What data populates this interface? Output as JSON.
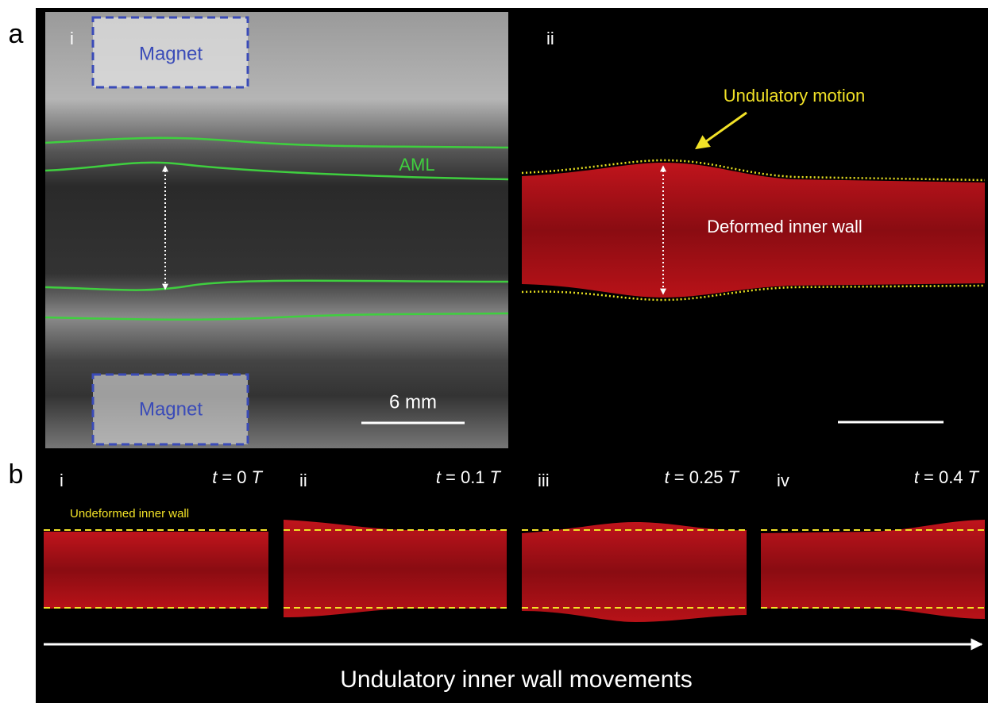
{
  "panel_a": {
    "label": "a",
    "sub_i": {
      "label": "i",
      "magnet_top": "Magnet",
      "magnet_bottom": "Magnet",
      "layer": "AML",
      "scale_bar": "6 mm"
    },
    "sub_ii": {
      "label": "ii",
      "annotation": "Undulatory motion",
      "wall": "Deformed inner wall"
    }
  },
  "panel_b": {
    "label": "b",
    "reference": "Undeformed inner wall",
    "frames": [
      {
        "label": "i",
        "time": {
          "var": "t",
          "eq": "= 0",
          "unit": "T"
        }
      },
      {
        "label": "ii",
        "time": {
          "var": "t",
          "eq": "= 0.1",
          "unit": "T"
        }
      },
      {
        "label": "iii",
        "time": {
          "var": "t",
          "eq": "= 0.25",
          "unit": "T"
        }
      },
      {
        "label": "iv",
        "time": {
          "var": "t",
          "eq": "= 0.4",
          "unit": "T"
        }
      }
    ],
    "caption": "Undulatory inner wall movements"
  }
}
